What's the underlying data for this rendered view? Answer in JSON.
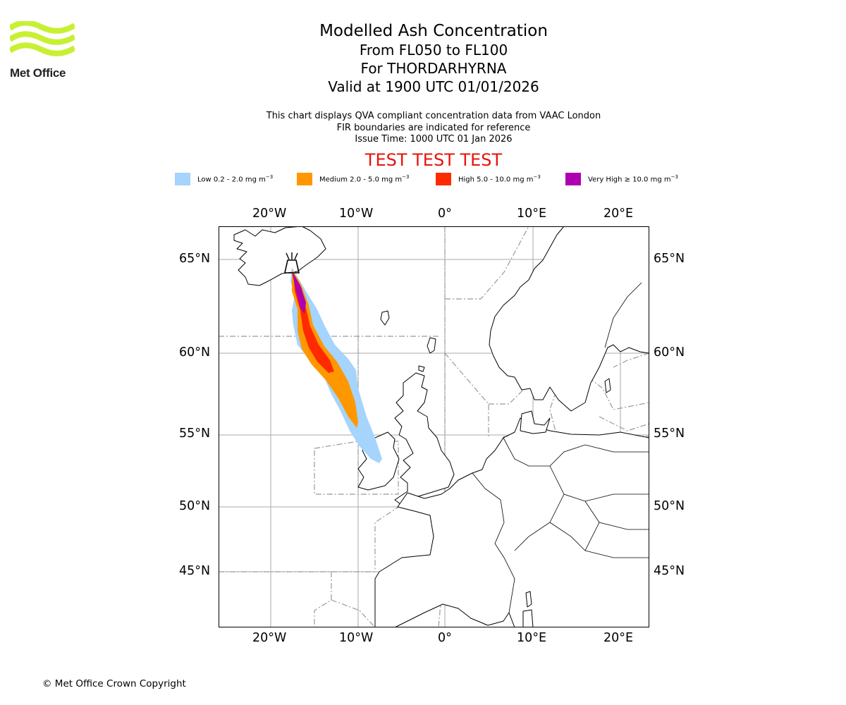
{
  "header": {
    "organisation": "Met Office",
    "title": "Modelled Ash Concentration",
    "flight_levels": "From FL050 to FL100",
    "volcano": "For THORDARHYRNA",
    "valid_time": "Valid at 1900 UTC 01/01/2026"
  },
  "info": {
    "line1": "This chart displays QVA compliant concentration data from VAAC London",
    "line2": "FIR boundaries are indicated for reference",
    "line3": "Issue Time: 1000 UTC 01 Jan 2026"
  },
  "banner": "TEST TEST TEST",
  "legend": [
    {
      "label": "Low 0.2 - 2.0 mg m",
      "sup": "−3",
      "color": "#a5d4fd"
    },
    {
      "label": "Medium 2.0 - 5.0 mg m",
      "sup": "−3",
      "color": "#ff9800"
    },
    {
      "label": "High 5.0 - 10.0 mg m",
      "sup": "−3",
      "color": "#ff2a00"
    },
    {
      "label": "Very High  ≥  10.0 mg m",
      "sup": "−3",
      "color": "#ad00b0"
    }
  ],
  "map": {
    "lon_range": [
      -26,
      23.5
    ],
    "lat_range": [
      41.5,
      66.8
    ],
    "lon_ticks": [
      {
        "value": -20,
        "label": "20°W"
      },
      {
        "value": -10,
        "label": "10°W"
      },
      {
        "value": 0,
        "label": "0°"
      },
      {
        "value": 10,
        "label": "10°E"
      },
      {
        "value": 20,
        "label": "20°E"
      }
    ],
    "lat_ticks": [
      {
        "value": 65,
        "label": "65°N"
      },
      {
        "value": 60,
        "label": "60°N"
      },
      {
        "value": 55,
        "label": "55°N"
      },
      {
        "value": 50,
        "label": "50°N"
      },
      {
        "value": 45,
        "label": "45°N"
      }
    ],
    "volcano_marker": {
      "icon": "volcano-icon",
      "lon": -17.8,
      "lat": 64.4
    },
    "grid_color": "#aaaaaa",
    "fir_color": "#999999"
  },
  "footer": {
    "copyright": "© Met Office Crown Copyright"
  }
}
